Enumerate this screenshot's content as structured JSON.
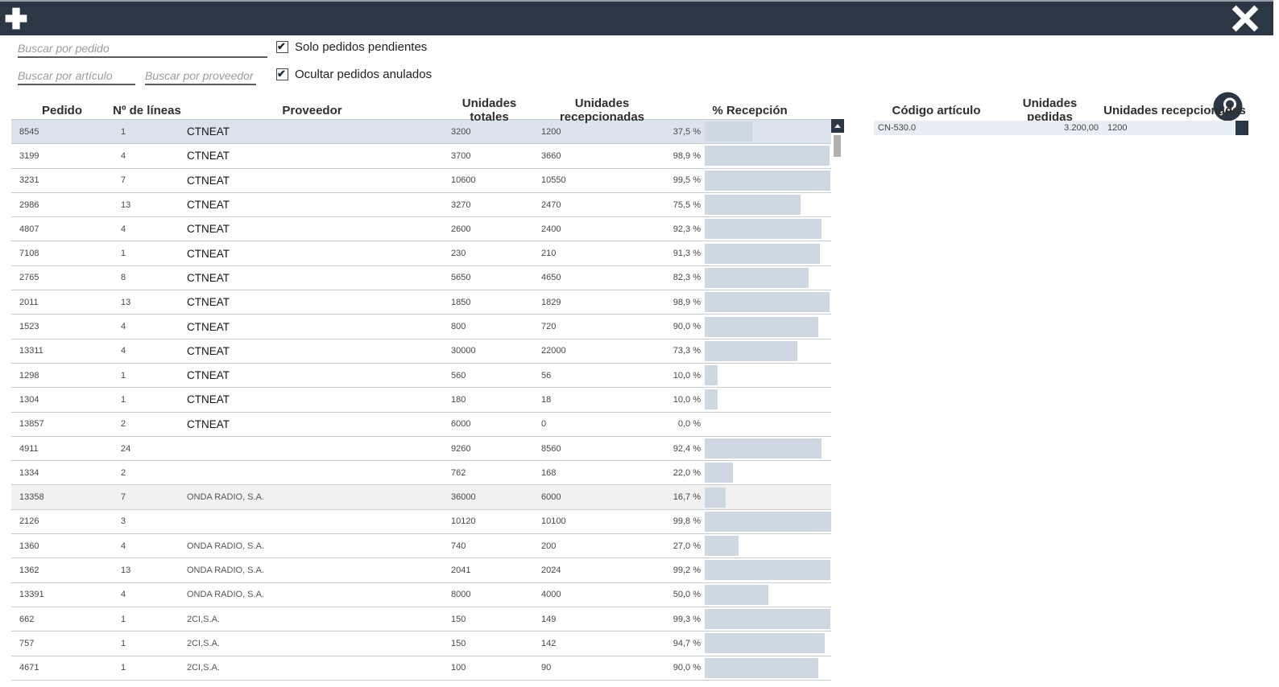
{
  "titlebar": {
    "add_icon": "plus-icon",
    "close_icon": "x-icon",
    "bg_color": "#2b3744"
  },
  "filters": {
    "search_pedido_placeholder": "Buscar por pedido",
    "search_articulo_placeholder": "Buscar por artículo",
    "search_proveedor_placeholder": "Buscar por proveedor",
    "checkbox_pendientes": {
      "label": "Solo pedidos pendientes",
      "checked": true
    },
    "checkbox_anulados": {
      "label": "Ocultar pedidos anulados",
      "checked": true
    },
    "search_icon": "magnifier-icon"
  },
  "orders_table": {
    "columns": [
      "Pedido",
      "Nº de líneas",
      "Proveedor",
      "Unidades totales",
      "Unidades recepcionadas",
      "% Recepción"
    ],
    "bar_color": "#cdd8e2",
    "selected_row_color": "#dbe4ed",
    "rows": [
      {
        "pedido": "8545",
        "lineas": "1",
        "proveedor": "CTNEAT",
        "em": true,
        "totales": "3200",
        "recepcionadas": "1200",
        "pct_label": "37,5 %",
        "pct": 37.5,
        "state": "selected"
      },
      {
        "pedido": "3199",
        "lineas": "4",
        "proveedor": "CTNEAT",
        "em": true,
        "totales": "3700",
        "recepcionadas": "3660",
        "pct_label": "98,9 %",
        "pct": 98.9,
        "state": ""
      },
      {
        "pedido": "3231",
        "lineas": "7",
        "proveedor": "CTNEAT",
        "em": true,
        "totales": "10600",
        "recepcionadas": "10550",
        "pct_label": "99,5 %",
        "pct": 99.5,
        "state": ""
      },
      {
        "pedido": "2986",
        "lineas": "13",
        "proveedor": "CTNEAT",
        "em": true,
        "totales": "3270",
        "recepcionadas": "2470",
        "pct_label": "75,5 %",
        "pct": 75.5,
        "state": ""
      },
      {
        "pedido": "4807",
        "lineas": "4",
        "proveedor": "CTNEAT",
        "em": true,
        "totales": "2600",
        "recepcionadas": "2400",
        "pct_label": "92,3 %",
        "pct": 92.3,
        "state": ""
      },
      {
        "pedido": "7108",
        "lineas": "1",
        "proveedor": "CTNEAT",
        "em": true,
        "totales": "230",
        "recepcionadas": "210",
        "pct_label": "91,3 %",
        "pct": 91.3,
        "state": ""
      },
      {
        "pedido": "2765",
        "lineas": "8",
        "proveedor": "CTNEAT",
        "em": true,
        "totales": "5650",
        "recepcionadas": "4650",
        "pct_label": "82,3 %",
        "pct": 82.3,
        "state": ""
      },
      {
        "pedido": "2011",
        "lineas": "13",
        "proveedor": "CTNEAT",
        "em": true,
        "totales": "1850",
        "recepcionadas": "1829",
        "pct_label": "98,9 %",
        "pct": 98.9,
        "state": ""
      },
      {
        "pedido": "1523",
        "lineas": "4",
        "proveedor": "CTNEAT",
        "em": true,
        "totales": "800",
        "recepcionadas": "720",
        "pct_label": "90,0 %",
        "pct": 90.0,
        "state": ""
      },
      {
        "pedido": "13311",
        "lineas": "4",
        "proveedor": "CTNEAT",
        "em": true,
        "totales": "30000",
        "recepcionadas": "22000",
        "pct_label": "73,3 %",
        "pct": 73.3,
        "state": ""
      },
      {
        "pedido": "1298",
        "lineas": "1",
        "proveedor": "CTNEAT",
        "em": true,
        "totales": "560",
        "recepcionadas": "56",
        "pct_label": "10,0 %",
        "pct": 10.0,
        "state": ""
      },
      {
        "pedido": "1304",
        "lineas": "1",
        "proveedor": "CTNEAT",
        "em": true,
        "totales": "180",
        "recepcionadas": "18",
        "pct_label": "10,0 %",
        "pct": 10.0,
        "state": ""
      },
      {
        "pedido": "13857",
        "lineas": "2",
        "proveedor": "CTNEAT",
        "em": true,
        "totales": "6000",
        "recepcionadas": "0",
        "pct_label": "0,0 %",
        "pct": 0,
        "state": ""
      },
      {
        "pedido": "4911",
        "lineas": "24",
        "proveedor": "",
        "em": false,
        "totales": "9260",
        "recepcionadas": "8560",
        "pct_label": "92,4 %",
        "pct": 92.4,
        "state": ""
      },
      {
        "pedido": "1334",
        "lineas": "2",
        "proveedor": "",
        "em": false,
        "totales": "762",
        "recepcionadas": "168",
        "pct_label": "22,0 %",
        "pct": 22.0,
        "state": ""
      },
      {
        "pedido": "13358",
        "lineas": "7",
        "proveedor": "ONDA RADIO, S.A.",
        "em": false,
        "totales": "36000",
        "recepcionadas": "6000",
        "pct_label": "16,7 %",
        "pct": 16.7,
        "state": "shaded"
      },
      {
        "pedido": "2126",
        "lineas": "3",
        "proveedor": "",
        "em": false,
        "totales": "10120",
        "recepcionadas": "10100",
        "pct_label": "99,8 %",
        "pct": 99.8,
        "state": ""
      },
      {
        "pedido": "1360",
        "lineas": "4",
        "proveedor": "ONDA RADIO, S.A.",
        "em": false,
        "totales": "740",
        "recepcionadas": "200",
        "pct_label": "27,0 %",
        "pct": 27.0,
        "state": ""
      },
      {
        "pedido": "1362",
        "lineas": "13",
        "proveedor": "ONDA RADIO, S.A.",
        "em": false,
        "totales": "2041",
        "recepcionadas": "2024",
        "pct_label": "99,2 %",
        "pct": 99.2,
        "state": ""
      },
      {
        "pedido": "13391",
        "lineas": "4",
        "proveedor": "ONDA RADIO, S.A.",
        "em": false,
        "totales": "8000",
        "recepcionadas": "4000",
        "pct_label": "50,0 %",
        "pct": 50.0,
        "state": ""
      },
      {
        "pedido": "662",
        "lineas": "1",
        "proveedor": "2CI,S.A.",
        "em": false,
        "totales": "150",
        "recepcionadas": "149",
        "pct_label": "99,3 %",
        "pct": 99.3,
        "state": ""
      },
      {
        "pedido": "757",
        "lineas": "1",
        "proveedor": "2CI,S.A.",
        "em": false,
        "totales": "150",
        "recepcionadas": "142",
        "pct_label": "94,7 %",
        "pct": 94.7,
        "state": ""
      },
      {
        "pedido": "4671",
        "lineas": "1",
        "proveedor": "2CI,S.A.",
        "em": false,
        "totales": "100",
        "recepcionadas": "90",
        "pct_label": "90,0 %",
        "pct": 90.0,
        "state": ""
      }
    ]
  },
  "detail_table": {
    "columns": [
      "Código artículo",
      "Unidades pedidas",
      "Unidades recepcionadas"
    ],
    "rows": [
      {
        "codigo": "CN-530.0",
        "pedidas": "3.200,00",
        "recepcionadas": "1200"
      }
    ]
  }
}
